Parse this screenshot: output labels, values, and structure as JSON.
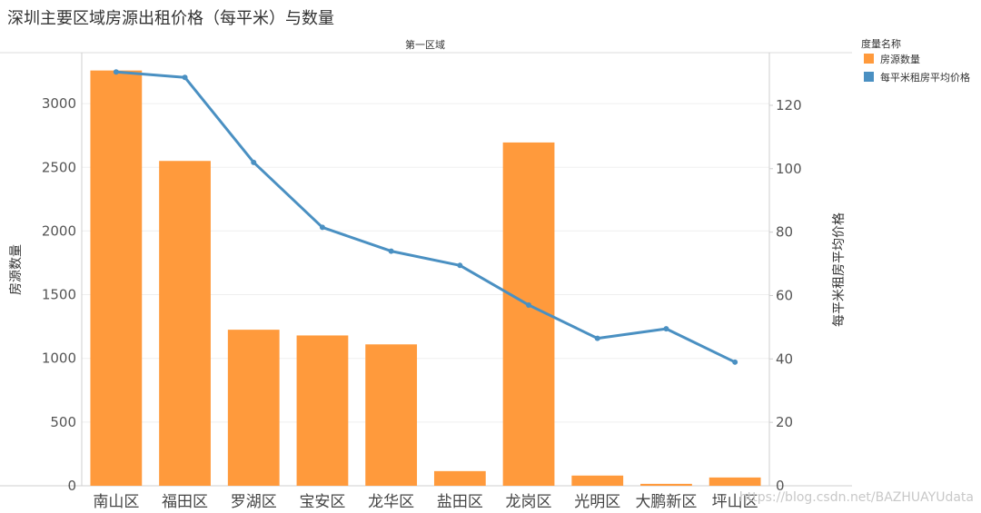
{
  "chart_data": {
    "type": "bar",
    "title": "深圳主要区域房源出租价格（每平米）与数量",
    "panel_title": "第一区域",
    "categories": [
      "南山区",
      "福田区",
      "罗湖区",
      "宝安区",
      "龙华区",
      "盐田区",
      "龙岗区",
      "光明区",
      "大鹏新区",
      "坪山区"
    ],
    "series": [
      {
        "name": "房源数量",
        "kind": "bar",
        "axis": "left",
        "color": "#FF9A3C",
        "values": [
          3260,
          2550,
          1225,
          1180,
          1110,
          115,
          2695,
          80,
          15,
          65
        ]
      },
      {
        "name": "每平米租房平均价格",
        "kind": "line",
        "axis": "right",
        "color": "#4A90C2",
        "values": [
          130.5,
          128.8,
          102.0,
          81.5,
          74.0,
          69.5,
          57.0,
          46.5,
          49.5,
          39.0
        ]
      }
    ],
    "ylabel": "房源数量",
    "ylabel_right": "每平米租房平均价格",
    "yticks": [
      0,
      500,
      1000,
      1500,
      2000,
      2500,
      3000
    ],
    "yticks_right": [
      0,
      20,
      40,
      60,
      80,
      100,
      120
    ],
    "ylim": [
      0,
      3400
    ],
    "ylim_right": [
      0,
      136.6
    ],
    "grid": true,
    "legend": {
      "title": "度量名称",
      "position": "top-right",
      "items": [
        "房源数量",
        "每平米租房平均价格"
      ]
    }
  },
  "watermark": "https://blog.csdn.net/BAZHUAYUdata"
}
